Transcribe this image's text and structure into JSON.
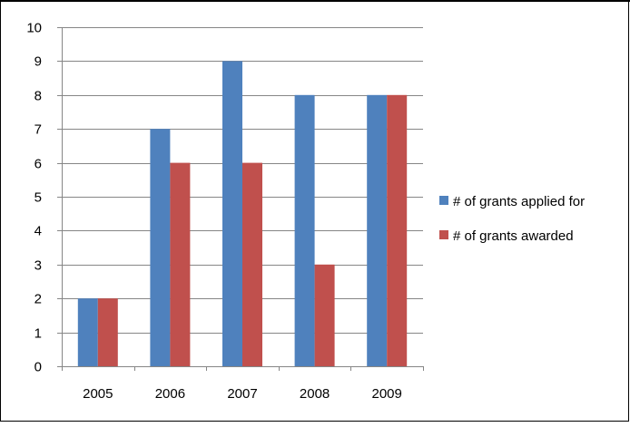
{
  "chart_data": {
    "type": "bar",
    "categories": [
      "2005",
      "2006",
      "2007",
      "2008",
      "2009"
    ],
    "series": [
      {
        "name": "# of grants applied for",
        "values": [
          2,
          7,
          9,
          8,
          8
        ],
        "color": "#4f81bd"
      },
      {
        "name": "# of grants awarded",
        "values": [
          2,
          6,
          6,
          3,
          8
        ],
        "color": "#c0504d"
      }
    ],
    "title": "",
    "xlabel": "",
    "ylabel": "",
    "ylim": [
      0,
      10
    ],
    "yticks": [
      0,
      1,
      2,
      3,
      4,
      5,
      6,
      7,
      8,
      9,
      10
    ],
    "grid": true,
    "legend_position": "right"
  }
}
